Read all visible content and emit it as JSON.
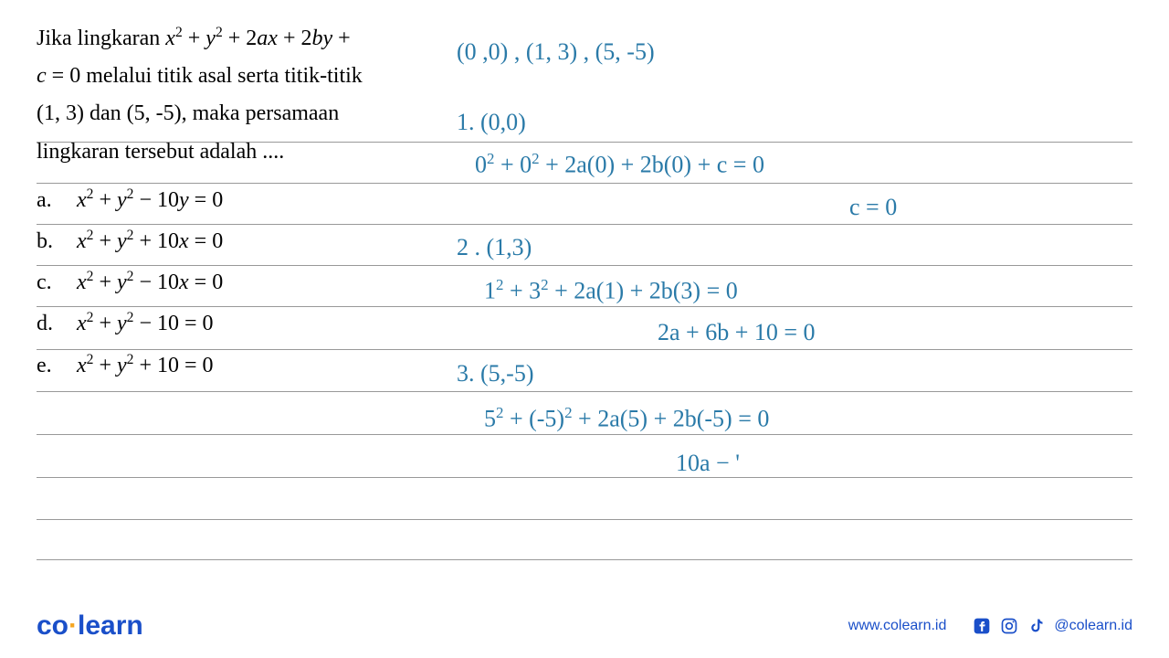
{
  "question": {
    "line1": "Jika lingkaran <i>x</i><sup>2</sup> + <i>y</i><sup>2</sup> + 2<i>ax</i> + 2<i>by</i> +",
    "line2": "<i>c</i> = 0 melalui titik asal serta titik-titik",
    "line3": "(1, 3) dan (5, -5), maka persamaan",
    "line4": "lingkaran tersebut adalah ...."
  },
  "options": {
    "a": {
      "letter": "a.",
      "text": "<i>x</i><sup>2</sup> + <i>y</i><sup>2</sup> &minus; 10<i>y</i> = 0"
    },
    "b": {
      "letter": "b.",
      "text": "<i>x</i><sup>2</sup> + <i>y</i><sup>2</sup> + 10<i>x</i> = 0"
    },
    "c": {
      "letter": "c.",
      "text": "<i>x</i><sup>2</sup> + <i>y</i><sup>2</sup> &minus; 10<i>x</i> = 0"
    },
    "d": {
      "letter": "d.",
      "text": "<i>x</i><sup>2</sup> + <i>y</i><sup>2</sup> &minus; 10 = 0"
    },
    "e": {
      "letter": "e.",
      "text": "<i>x</i><sup>2</sup> + <i>y</i><sup>2</sup> + 10 = 0"
    }
  },
  "handwriting": {
    "points": "(0 ,0)  ,  (1, 3) ,  (5, -5)",
    "s1_label": "1. (0,0)",
    "s1_eq": "0<sup>2</sup> + 0<sup>2</sup> + 2a(0) + 2b(0) + c  =  0",
    "s1_res": "c  =  0",
    "s2_label": "2 . (1,3)",
    "s2_eq": "1<sup>2</sup> + 3<sup>2</sup> + 2a(1) + 2b(3)  =  0",
    "s2_res": "2a + 6b + 10  =  0",
    "s3_label": "3. (5,-5)",
    "s3_eq": "5<sup>2</sup> + (-5)<sup>2</sup> + 2a(5) + 2b(-5)  = 0",
    "s3_res": "10a  &minus; '"
  },
  "ruled_line_y": [
    155,
    200,
    245,
    290,
    335,
    380,
    425,
    470,
    515,
    560,
    605
  ],
  "colors": {
    "handwriting": "#2a7aa8",
    "text": "#000000",
    "rule": "#999999",
    "brand_blue": "#1a4fc9",
    "brand_accent": "#f5a623"
  },
  "footer": {
    "logo_pre": "co",
    "logo_post": "learn",
    "url": "www.colearn.id",
    "handle": "@colearn.id"
  }
}
